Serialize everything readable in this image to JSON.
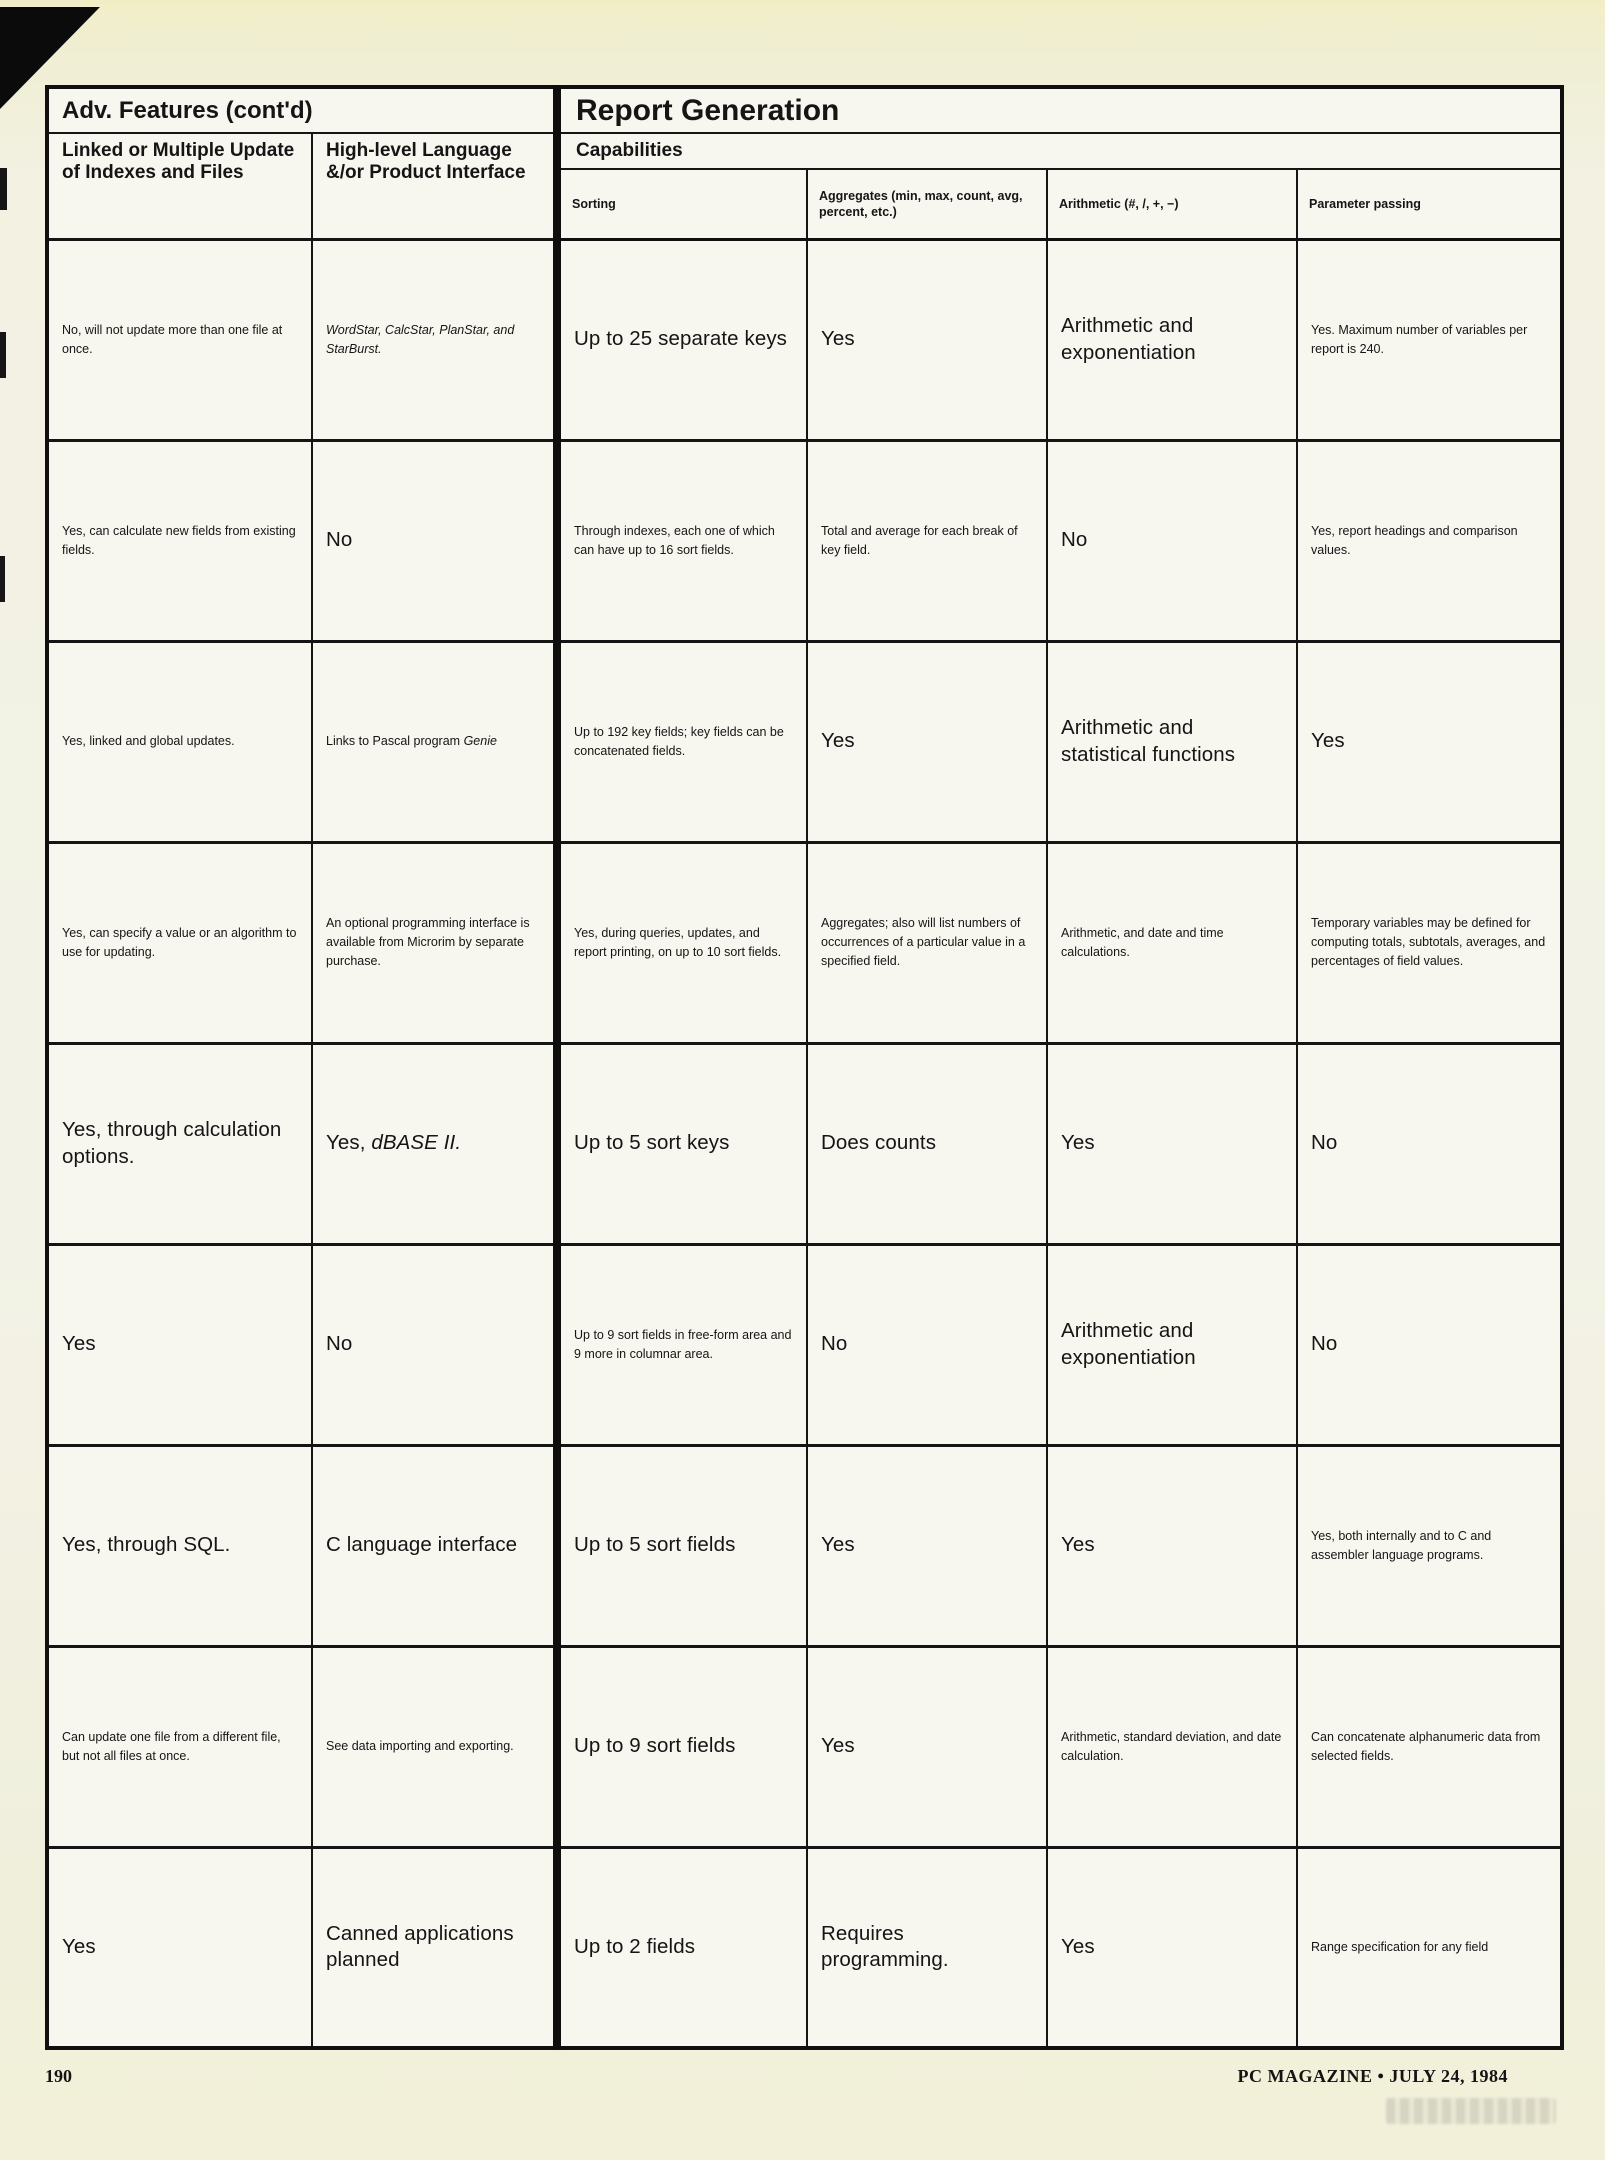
{
  "table": {
    "title_left": "Adv. Features (cont'd)",
    "title_right": "Report Generation",
    "capabilities_label": "Capabilities",
    "left_headers": [
      "Linked or Multiple Update of Indexes and Files",
      "High-level Language &/or Product Interface"
    ],
    "capability_columns": [
      "Sorting",
      "Aggregates (min, max, count, avg, percent, etc.)",
      "Arithmetic (#, /, +, −)",
      "Parameter passing"
    ],
    "column_keys": [
      "linked-update",
      "language-interface",
      "sorting",
      "aggregates",
      "arithmetic",
      "parameter-passing"
    ],
    "rows": [
      [
        {
          "text": "No, will not update more than one file at once.",
          "size": "sm"
        },
        {
          "text": "WordStar, CalcStar, PlanStar, and StarBurst.",
          "size": "sm",
          "italic": true
        },
        {
          "text": "Up to 25 separate keys",
          "size": "lg"
        },
        {
          "text": "Yes",
          "size": "lg"
        },
        {
          "text": "Arithmetic and exponentiation",
          "size": "lg"
        },
        {
          "text": "Yes. Maximum number of variables per report is 240.",
          "size": "sm"
        }
      ],
      [
        {
          "text": "Yes, can calculate new fields from existing fields.",
          "size": "sm"
        },
        {
          "text": "No",
          "size": "lg"
        },
        {
          "text": "Through indexes, each one of which can have up to 16 sort fields.",
          "size": "sm"
        },
        {
          "text": "Total and average for each break of key field.",
          "size": "sm"
        },
        {
          "text": "No",
          "size": "lg"
        },
        {
          "text": "Yes, report headings and comparison values.",
          "size": "sm"
        }
      ],
      [
        {
          "text": "Yes, linked and global updates.",
          "size": "sm"
        },
        {
          "segments": [
            {
              "text": "Links to Pascal program "
            },
            {
              "text": "Genie",
              "italic": true
            }
          ],
          "size": "sm"
        },
        {
          "text": "Up to 192 key fields; key fields can be concatenated fields.",
          "size": "sm"
        },
        {
          "text": "Yes",
          "size": "lg"
        },
        {
          "text": "Arithmetic and statistical functions",
          "size": "lg"
        },
        {
          "text": "Yes",
          "size": "lg"
        }
      ],
      [
        {
          "text": "Yes, can specify a value or an algorithm to use for updating.",
          "size": "sm"
        },
        {
          "text": "An optional programming interface is available from Microrim by separate purchase.",
          "size": "sm"
        },
        {
          "text": "Yes, during queries, updates, and report printing, on up to 10 sort fields.",
          "size": "sm"
        },
        {
          "text": "Aggregates; also will list numbers of occurrences of a particular value in a specified field.",
          "size": "sm"
        },
        {
          "text": "Arithmetic, and date and time calculations.",
          "size": "sm"
        },
        {
          "text": "Temporary variables may be defined for computing totals, subtotals, averages, and percentages of field values.",
          "size": "sm"
        }
      ],
      [
        {
          "text": "Yes, through calculation options.",
          "size": "lg"
        },
        {
          "segments": [
            {
              "text": "Yes, "
            },
            {
              "text": "dBASE II.",
              "italic": true
            }
          ],
          "size": "lg"
        },
        {
          "text": "Up to 5 sort keys",
          "size": "lg"
        },
        {
          "text": "Does counts",
          "size": "lg"
        },
        {
          "text": "Yes",
          "size": "lg"
        },
        {
          "text": "No",
          "size": "lg"
        }
      ],
      [
        {
          "text": "Yes",
          "size": "lg"
        },
        {
          "text": "No",
          "size": "lg"
        },
        {
          "text": "Up to 9 sort fields in free-form area and 9 more in columnar area.",
          "size": "sm"
        },
        {
          "text": "No",
          "size": "lg"
        },
        {
          "text": "Arithmetic and exponentiation",
          "size": "lg"
        },
        {
          "text": "No",
          "size": "lg"
        }
      ],
      [
        {
          "text": "Yes, through SQL.",
          "size": "lg"
        },
        {
          "text": "C language interface",
          "size": "lg"
        },
        {
          "text": "Up to 5 sort fields",
          "size": "lg"
        },
        {
          "text": "Yes",
          "size": "lg"
        },
        {
          "text": "Yes",
          "size": "lg"
        },
        {
          "text": "Yes, both internally and to C and assembler language programs.",
          "size": "sm"
        }
      ],
      [
        {
          "text": "Can update one file from a different file, but not all files at once.",
          "size": "sm"
        },
        {
          "text": "See data importing and exporting.",
          "size": "sm"
        },
        {
          "text": "Up to 9 sort fields",
          "size": "lg"
        },
        {
          "text": "Yes",
          "size": "lg"
        },
        {
          "text": "Arithmetic, standard deviation, and date calculation.",
          "size": "sm"
        },
        {
          "text": "Can concatenate alphanumeric data from selected fields.",
          "size": "sm"
        }
      ],
      [
        {
          "text": "Yes",
          "size": "lg"
        },
        {
          "text": "Canned applications planned",
          "size": "lg"
        },
        {
          "text": "Up to 2 fields",
          "size": "lg"
        },
        {
          "text": "Requires programming.",
          "size": "lg"
        },
        {
          "text": "Yes",
          "size": "lg"
        },
        {
          "text": "Range specification for any field",
          "size": "sm"
        }
      ]
    ]
  },
  "footer": {
    "page_number": "190",
    "credit": "PC MAGAZINE • JULY 24, 1984"
  }
}
